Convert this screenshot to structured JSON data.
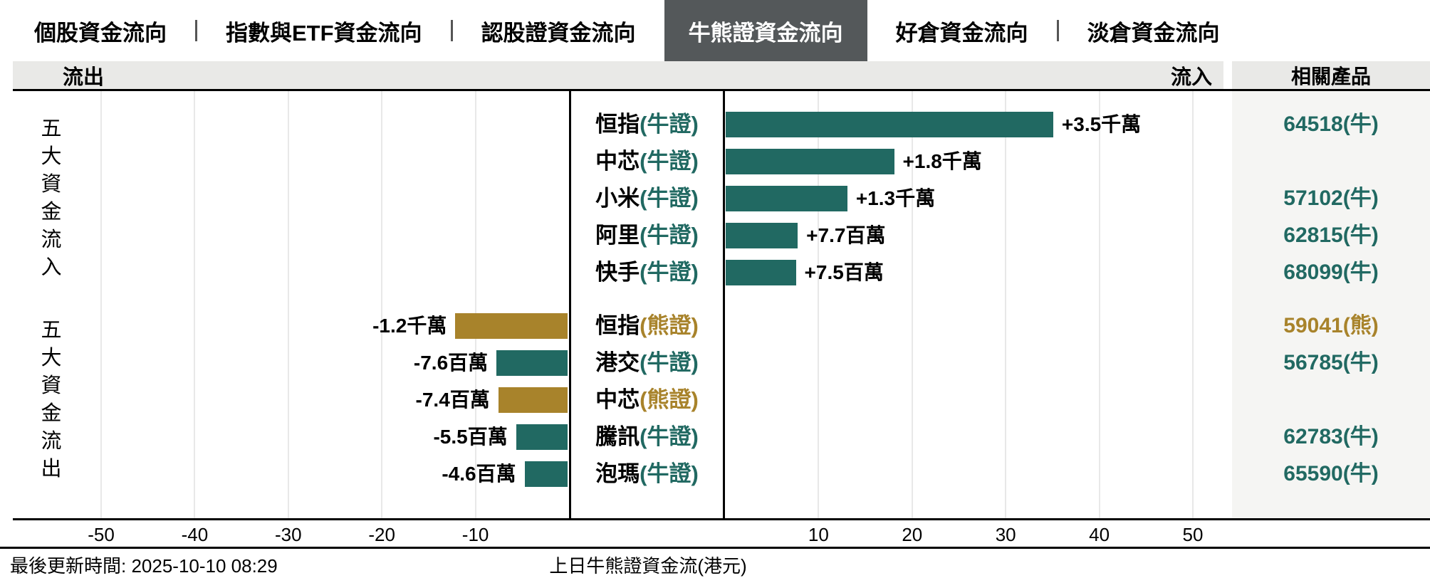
{
  "tabs": {
    "items": [
      {
        "id": "tab-stock-flow",
        "label": "個股資金流向",
        "selected": false
      },
      {
        "id": "tab-index-etf-flow",
        "label": "指數與ETF資金流向",
        "selected": false
      },
      {
        "id": "tab-warrant-flow",
        "label": "認股證資金流向",
        "selected": false
      },
      {
        "id": "tab-cbbc-flow",
        "label": "牛熊證資金流向",
        "selected": true
      },
      {
        "id": "tab-long-flow",
        "label": "好倉資金流向",
        "selected": false
      },
      {
        "id": "tab-short-flow",
        "label": "淡倉資金流向",
        "selected": false
      }
    ]
  },
  "header": {
    "outflow_label": "流出",
    "inflow_label": "流入",
    "products_label": "相關產品"
  },
  "group_labels": {
    "inflow": "五大資金流入",
    "outflow": "五大資金流出"
  },
  "footer": {
    "last_update": "最後更新時間: 2025-10-10 08:29"
  },
  "colors": {
    "bull": "#216962",
    "bear": "#a8832b",
    "tab_selected_bg": "#54585a",
    "tab_selected_text": "#ffffff",
    "header_bg": "#e9e9e7",
    "product_col_bg": "#f5f5f3",
    "gridline": "#e8e8e8",
    "tab_divider": "#555555",
    "text": "#000000"
  },
  "chart_data": {
    "type": "bar",
    "orientation": "horizontal-diverging",
    "title": "上日牛熊證資金流(港元)",
    "xlabel": "",
    "ylabel": "",
    "value_unit": "百萬港元",
    "xlim": [
      -59,
      54
    ],
    "x_ticks": [
      -50,
      -40,
      -30,
      -20,
      -10,
      10,
      20,
      30,
      40,
      50
    ],
    "grid": true,
    "rows": [
      {
        "name": "恒指",
        "cert": "牛證",
        "kind": "bull",
        "group": "inflow",
        "value": 35,
        "value_label": "+3.5千萬",
        "product": "64518(牛)"
      },
      {
        "name": "中芯",
        "cert": "牛證",
        "kind": "bull",
        "group": "inflow",
        "value": 18,
        "value_label": "+1.8千萬",
        "product": ""
      },
      {
        "name": "小米",
        "cert": "牛證",
        "kind": "bull",
        "group": "inflow",
        "value": 13,
        "value_label": "+1.3千萬",
        "product": "57102(牛)"
      },
      {
        "name": "阿里",
        "cert": "牛證",
        "kind": "bull",
        "group": "inflow",
        "value": 7.7,
        "value_label": "+7.7百萬",
        "product": "62815(牛)"
      },
      {
        "name": "快手",
        "cert": "牛證",
        "kind": "bull",
        "group": "inflow",
        "value": 7.5,
        "value_label": "+7.5百萬",
        "product": "68099(牛)"
      },
      {
        "name": "恒指",
        "cert": "熊證",
        "kind": "bear",
        "group": "outflow",
        "value": -12,
        "value_label": "-1.2千萬",
        "product": "59041(熊)"
      },
      {
        "name": "港交",
        "cert": "牛證",
        "kind": "bull",
        "group": "outflow",
        "value": -7.6,
        "value_label": "-7.6百萬",
        "product": "56785(牛)"
      },
      {
        "name": "中芯",
        "cert": "熊證",
        "kind": "bear",
        "group": "outflow",
        "value": -7.4,
        "value_label": "-7.4百萬",
        "product": ""
      },
      {
        "name": "騰訊",
        "cert": "牛證",
        "kind": "bull",
        "group": "outflow",
        "value": -5.5,
        "value_label": "-5.5百萬",
        "product": "62783(牛)"
      },
      {
        "name": "泡瑪",
        "cert": "牛證",
        "kind": "bull",
        "group": "outflow",
        "value": -4.6,
        "value_label": "-4.6百萬",
        "product": "65590(牛)"
      }
    ]
  }
}
